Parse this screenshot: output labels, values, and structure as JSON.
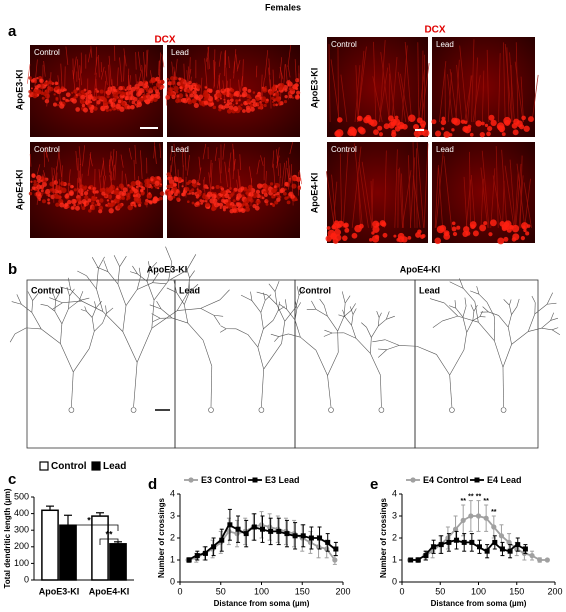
{
  "figure": {
    "title": "Females",
    "panel_a": {
      "letter": "a",
      "stain_left": "DCX",
      "stain_right": "DCX",
      "rows": [
        "ApoE3-KI",
        "ApoE4-KI"
      ],
      "rows_right": [
        "ApoE3-KI",
        "ApoE4-KI"
      ],
      "cols": [
        "Control",
        "Lead",
        "Control",
        "Lead"
      ],
      "cols_right": [
        "Control",
        "Lead",
        "Control",
        "Lead"
      ]
    },
    "panel_b": {
      "letter": "b",
      "groups": [
        "ApoE3-KI",
        "ApoE4-KI"
      ],
      "cols": [
        "Control",
        "Lead",
        "Control",
        "Lead"
      ]
    },
    "panel_letters": [
      "c",
      "d",
      "e"
    ]
  },
  "chart_data": [
    {
      "type": "bar",
      "ylabel": "Total dendritic length (µm)",
      "categories": [
        "ApoE3-KI",
        "ApoE4-KI"
      ],
      "series": [
        {
          "name": "Control",
          "color": "#ffffff",
          "values": [
            420,
            385
          ],
          "errors": [
            25,
            20
          ]
        },
        {
          "name": "Lead",
          "color": "#000000",
          "values": [
            330,
            218
          ],
          "errors": [
            60,
            12
          ]
        }
      ],
      "ylim": [
        0,
        500
      ],
      "yticks": [
        0,
        100,
        200,
        300,
        400,
        500
      ],
      "annotations": [
        "*",
        "**"
      ]
    },
    {
      "type": "line",
      "xlabel": "Distance from soma (µm)",
      "ylabel": "Number of crossings",
      "x": [
        10,
        20,
        30,
        40,
        50,
        60,
        70,
        80,
        90,
        100,
        110,
        120,
        130,
        140,
        150,
        160,
        170,
        180,
        190
      ],
      "series": [
        {
          "name": "E3 Control",
          "color": "#a0a0a0",
          "marker": "circle",
          "values": [
            1.0,
            1.1,
            1.3,
            1.5,
            1.8,
            2.3,
            2.2,
            2.3,
            2.5,
            2.6,
            2.5,
            2.4,
            2.3,
            2.2,
            2.0,
            1.8,
            1.6,
            1.5,
            1.0
          ],
          "errors": [
            0.1,
            0.2,
            0.3,
            0.4,
            0.5,
            0.6,
            0.6,
            0.6,
            0.6,
            0.6,
            0.6,
            0.6,
            0.6,
            0.6,
            0.6,
            0.5,
            0.5,
            0.4,
            0.2
          ]
        },
        {
          "name": "E3 Lead",
          "color": "#000000",
          "marker": "square",
          "values": [
            1.0,
            1.2,
            1.3,
            1.6,
            1.9,
            2.6,
            2.4,
            2.2,
            2.5,
            2.4,
            2.3,
            2.3,
            2.2,
            2.1,
            2.1,
            2.0,
            2.0,
            1.8,
            1.5
          ],
          "errors": [
            0.1,
            0.2,
            0.3,
            0.4,
            0.5,
            0.7,
            0.6,
            0.6,
            0.6,
            0.6,
            0.6,
            0.6,
            0.6,
            0.6,
            0.5,
            0.5,
            0.5,
            0.4,
            0.3
          ]
        }
      ],
      "xlim": [
        0,
        200
      ],
      "xticks": [
        0,
        50,
        100,
        150,
        200
      ],
      "ylim": [
        0,
        4
      ],
      "yticks": [
        0,
        1,
        2,
        3,
        4
      ]
    },
    {
      "type": "line",
      "xlabel": "Distance from soma (µm)",
      "ylabel": "Number of crossings",
      "x": [
        10,
        20,
        30,
        40,
        50,
        60,
        70,
        80,
        90,
        100,
        110,
        120,
        130,
        140,
        150,
        160,
        170,
        180,
        190
      ],
      "series": [
        {
          "name": "E4 Control",
          "color": "#a0a0a0",
          "marker": "circle",
          "values": [
            1.0,
            1.0,
            1.2,
            1.4,
            1.7,
            2.0,
            2.4,
            2.8,
            3.0,
            3.0,
            2.9,
            2.5,
            2.1,
            1.8,
            1.5,
            1.3,
            1.2,
            1.0,
            1.0
          ],
          "errors": [
            0.0,
            0.1,
            0.2,
            0.3,
            0.4,
            0.5,
            0.6,
            0.7,
            0.7,
            0.7,
            0.6,
            0.5,
            0.5,
            0.4,
            0.3,
            0.3,
            0.2,
            0.1,
            0.0
          ]
        },
        {
          "name": "E4 Lead",
          "color": "#000000",
          "marker": "square",
          "values": [
            1.0,
            1.0,
            1.2,
            1.6,
            1.7,
            1.8,
            1.9,
            1.8,
            1.8,
            1.6,
            1.4,
            1.8,
            1.5,
            1.4,
            1.7,
            1.5,
            null,
            null,
            null
          ],
          "errors": [
            0.0,
            0.1,
            0.2,
            0.3,
            0.4,
            0.4,
            0.4,
            0.4,
            0.4,
            0.3,
            0.3,
            0.3,
            0.3,
            0.3,
            0.3,
            0.2,
            null,
            null,
            null
          ]
        }
      ],
      "xlim": [
        0,
        200
      ],
      "xticks": [
        0,
        50,
        100,
        150,
        200
      ],
      "ylim": [
        0,
        4
      ],
      "yticks": [
        0,
        1,
        2,
        3,
        4
      ],
      "annotations": [
        {
          "text": "**",
          "x": 80
        },
        {
          "text": "**",
          "x": 90
        },
        {
          "text": "**",
          "x": 100
        },
        {
          "text": "**",
          "x": 110
        },
        {
          "text": "**",
          "x": 120
        }
      ]
    }
  ]
}
